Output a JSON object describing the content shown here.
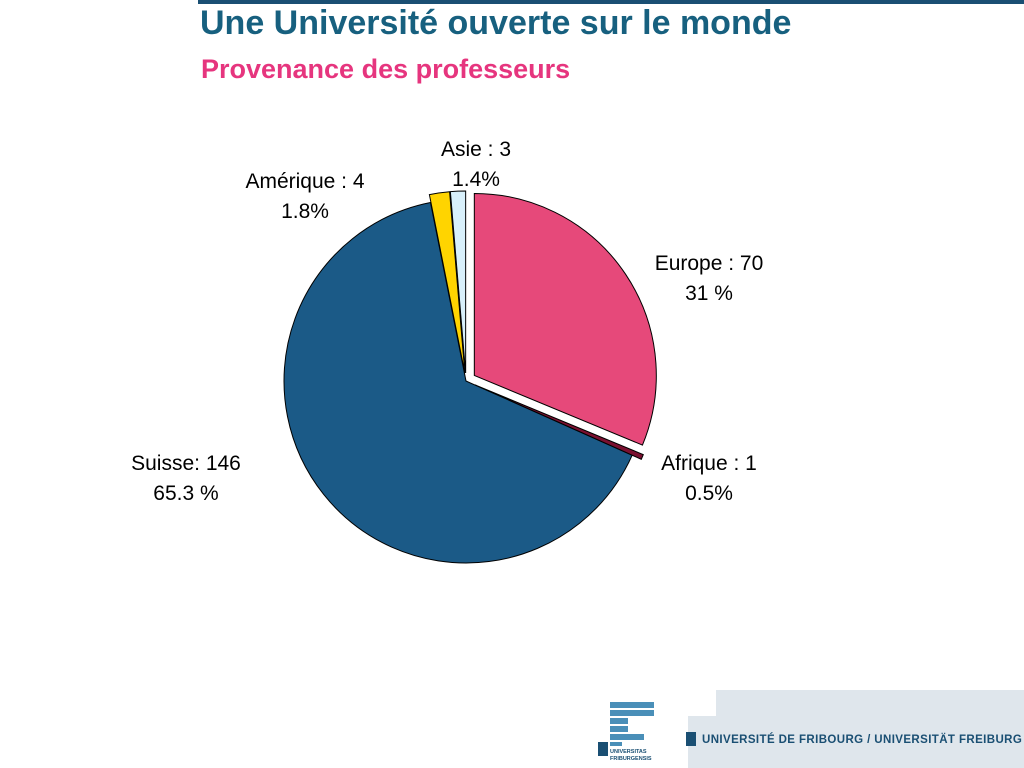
{
  "header": {
    "title": "Une Université ouverte sur le monde",
    "subtitle": "Provenance des professeurs"
  },
  "colors": {
    "title": "#17607f",
    "subtitle": "#e6357e",
    "europe": "#e6497a",
    "afrique": "#7a1030",
    "suisse": "#1b5a87",
    "amerique": "#ffd400",
    "asie": "#d8f0fb"
  },
  "chart_data": {
    "type": "pie",
    "title": "Provenance des professeurs",
    "start_angle_deg": 0,
    "direction": "clockwise",
    "exploded": true,
    "slices": [
      {
        "id": "europe",
        "count": 70,
        "percent": 31,
        "line1": "Europe : 70",
        "line2": "31 %"
      },
      {
        "id": "afrique",
        "count": 1,
        "percent": 0.5,
        "line1": "Afrique : 1",
        "line2": "0.5%"
      },
      {
        "id": "suisse",
        "count": 146,
        "percent": 65.3,
        "line1": "Suisse: 146",
        "line2": "65.3 %"
      },
      {
        "id": "amerique",
        "count": 4,
        "percent": 1.8,
        "line1": "Amérique : 4",
        "line2": "1.8%"
      },
      {
        "id": "asie",
        "count": 3,
        "percent": 1.4,
        "line1": "Asie : 3",
        "line2": "1.4%"
      }
    ]
  },
  "footer": {
    "university": "UNIVERSITÉ DE FRIBOURG / UNIVERSITÄT FREIBURG",
    "logo_text_line1": "UNIVERSITAS",
    "logo_text_line2": "FRIBURGENSIS"
  }
}
